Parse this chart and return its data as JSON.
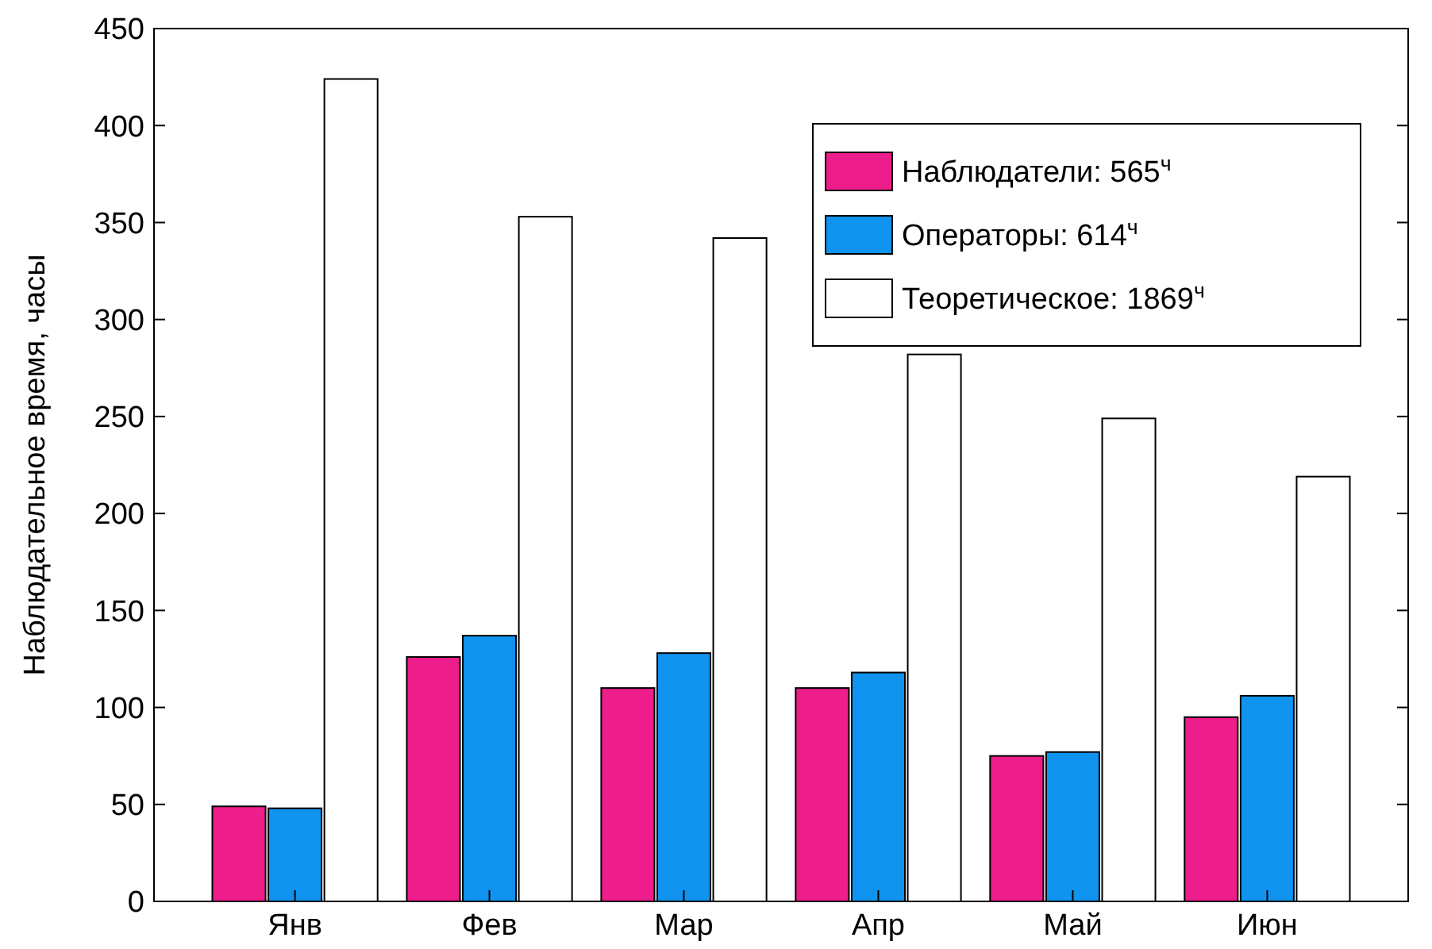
{
  "chart_data": {
    "type": "bar",
    "ylabel": "Наблюдательное время, часы",
    "categories": [
      "Янв",
      "Фев",
      "Мар",
      "Апр",
      "Май",
      "Июн"
    ],
    "series": [
      {
        "name": "Наблюдатели: 565$^{ч}$",
        "color": "#ee1d8c",
        "values": [
          49,
          126,
          110,
          110,
          75,
          95
        ]
      },
      {
        "name": "Операторы: 614$^{ч}$",
        "color": "#0f93ee",
        "values": [
          48,
          137,
          128,
          118,
          77,
          106
        ]
      },
      {
        "name": "Теоретическое: 1869$^{ч}$",
        "color": "#ffffff",
        "values": [
          424,
          353,
          342,
          282,
          249,
          219
        ]
      }
    ],
    "ylim": [
      0,
      450
    ],
    "yticks": [
      0,
      50,
      100,
      150,
      200,
      250,
      300,
      350,
      400,
      450
    ],
    "grid": false,
    "legend": "top right"
  }
}
